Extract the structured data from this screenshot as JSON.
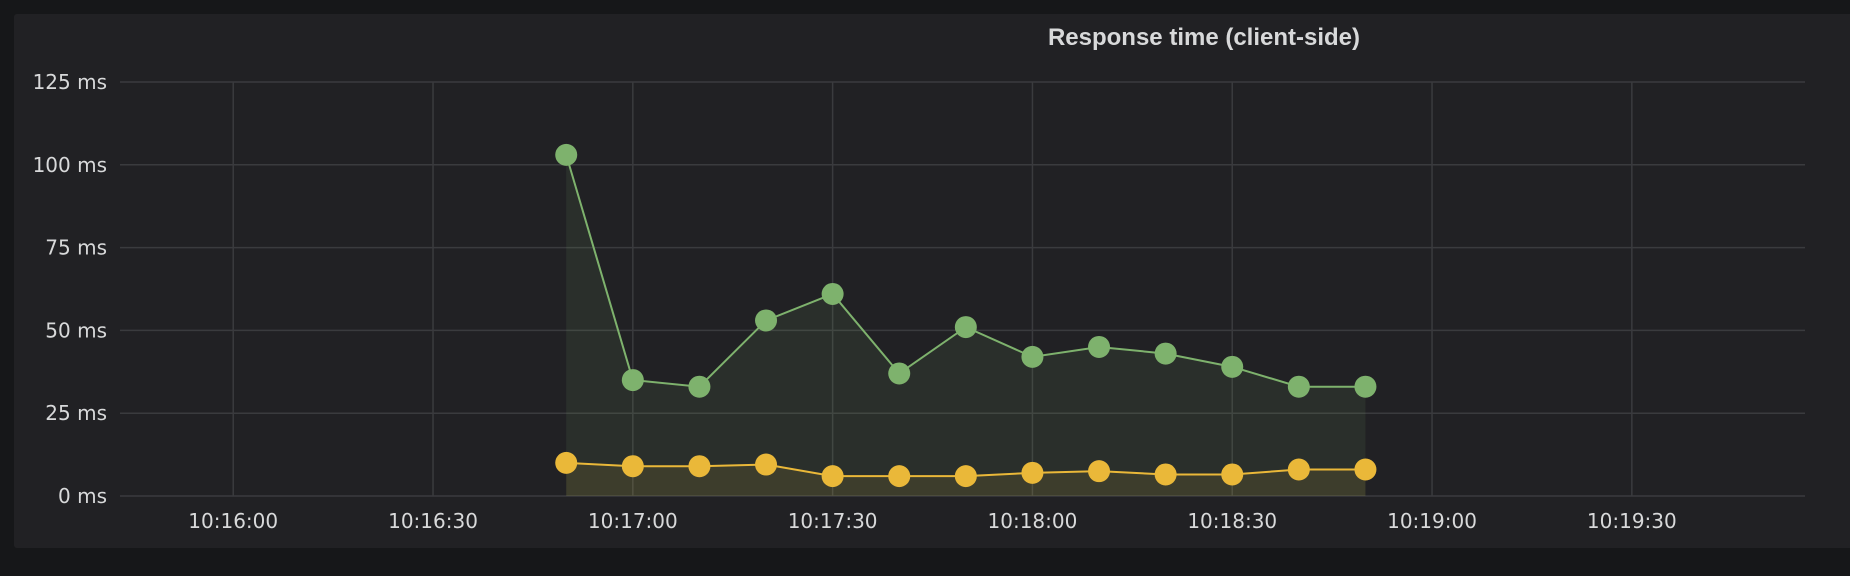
{
  "panel": {
    "title": "Response time (client-side)"
  },
  "chart_data": {
    "type": "line",
    "title": "Response time (client-side)",
    "xlabel": "",
    "ylabel": "",
    "x_tick_labels": [
      "10:16:00",
      "10:16:30",
      "10:17:00",
      "10:17:30",
      "10:18:00",
      "10:18:30",
      "10:19:00",
      "10:19:30"
    ],
    "x_tick_seconds": [
      960,
      990,
      1020,
      1050,
      1080,
      1110,
      1140,
      1170
    ],
    "xlim_seconds": [
      943,
      1196
    ],
    "y_tick_labels": [
      "0 ms",
      "25 ms",
      "50 ms",
      "75 ms",
      "100 ms",
      "125 ms"
    ],
    "y_tick_values": [
      0,
      25,
      50,
      75,
      100,
      125
    ],
    "ylim": [
      0,
      125
    ],
    "grid": true,
    "x": [
      "10:16:50",
      "10:17:00",
      "10:17:10",
      "10:17:20",
      "10:17:30",
      "10:17:40",
      "10:17:50",
      "10:18:00",
      "10:18:10",
      "10:18:20",
      "10:18:30",
      "10:18:40",
      "10:18:50"
    ],
    "x_seconds": [
      1010,
      1020,
      1030,
      1040,
      1050,
      1060,
      1070,
      1080,
      1090,
      1100,
      1110,
      1120,
      1130
    ],
    "series": [
      {
        "color": "#7eb26d",
        "values": [
          103,
          35,
          33,
          53,
          61,
          37,
          51,
          42,
          45,
          43,
          39,
          33,
          33
        ]
      },
      {
        "color": "#eab839",
        "values": [
          10,
          9,
          9,
          9.5,
          6,
          6,
          6,
          7,
          7.5,
          6.5,
          6.5,
          8,
          8
        ]
      }
    ]
  }
}
